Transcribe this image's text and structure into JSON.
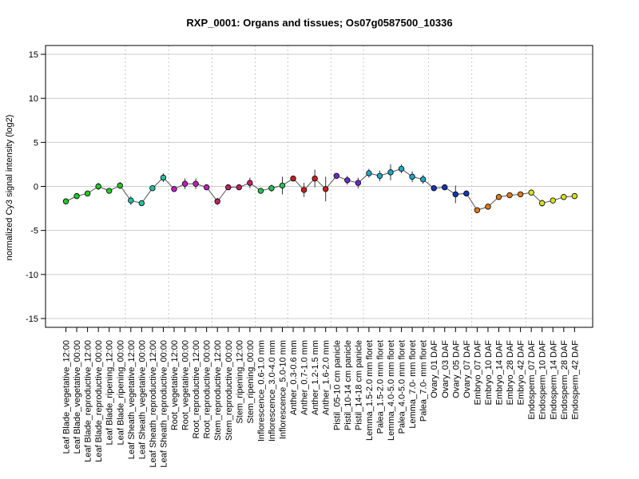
{
  "chart_data": {
    "type": "line",
    "title": "RXP_0001: Organs and tissues; Os07g0587500_10336",
    "xlabel": "",
    "ylabel": "normalized Cy3 signal intensity (log2)",
    "ylim": [
      -16,
      16
    ],
    "yticks": [
      -15,
      -10,
      -5,
      0,
      5,
      10,
      15
    ],
    "grid": true,
    "categories": [
      "Leaf Blade_vegetative_12:00",
      "Leaf Blade_vegetative_00:00",
      "Leaf Blade_reproductive_12:00",
      "Leaf Blade_reproductive_00:00",
      "Leaf Blade_ripening_12:00",
      "Leaf Blade_ripening_00:00",
      "Leaf Sheath_vegetative_12:00",
      "Leaf Sheath_vegetative_00:00",
      "Leaf Sheath_reproductive_12:00",
      "Leaf Sheath_reproductive_00:00",
      "Root_vegetative_12:00",
      "Root_vegetative_00:00",
      "Root_reproductive_12:00",
      "Root_reproductive_00:00",
      "Stem_reproductive_12:00",
      "Stem_reproductive_00:00",
      "Stem_ripening_12:00",
      "Stem_ripening_00:00",
      "Inflorescence_0.6-1.0 mm",
      "Inflorescence_3.0-4.0 mm",
      "Inflorescence_5.0-10 mm",
      "Anther_0.3-0.6 mm",
      "Anther_0.7-1.0 mm",
      "Anther_1.2-1.5 mm",
      "Anther_1.6-2.0 mm",
      "Pistil_05-10 cm panicle",
      "Pistil_10-14 cm panicle",
      "Pistil_14-18 cm panicle",
      "Lemma_1.5-2.0 mm floret",
      "Palea_1.5-2.0 mm floret",
      "Lemma_4.0-5.0 mm floret",
      "Palea_4.0-5.0 mm floret",
      "Lemma_7.0- mm floret",
      "Palea_7.0- mm floret",
      "Ovary_01 DAF",
      "Ovary_03 DAF",
      "Ovary_05 DAF",
      "Ovary_07 DAF",
      "Embryo_07 DAF",
      "Embryo_10 DAF",
      "Embryo_14 DAF",
      "Embryo_28 DAF",
      "Embryo_42 DAF",
      "Endosperm_07 DAF",
      "Endosperm_10 DAF",
      "Endosperm_14 DAF",
      "Endosperm_28 DAF",
      "Endosperm_42 DAF"
    ],
    "groups": [
      6,
      4,
      4,
      4,
      3,
      4,
      3,
      6,
      4,
      5,
      5
    ],
    "series": [
      {
        "values": [
          -1.7,
          -1.1,
          -0.8,
          0.0,
          -0.5,
          0.1,
          -1.6,
          -1.9,
          -0.2,
          1.0,
          -0.3,
          0.3,
          0.3,
          -0.1,
          -1.7,
          -0.1,
          -0.1,
          0.4,
          -0.5,
          -0.2,
          0.1,
          0.9,
          -0.4,
          0.9,
          -0.3,
          1.2,
          0.7,
          0.4,
          1.5,
          1.2,
          1.6,
          2.0,
          1.1,
          0.8,
          -0.2,
          -0.1,
          -0.9,
          -0.8,
          -2.7,
          -2.3,
          -1.2,
          -1.0,
          -0.9,
          -0.7,
          -1.9,
          -1.6,
          -1.2,
          -1.1
        ],
        "errors": [
          0.2,
          0.2,
          0.2,
          0.4,
          0.2,
          0.4,
          0.5,
          0.3,
          0.3,
          0.5,
          0.3,
          0.6,
          0.6,
          0.3,
          0.4,
          0.3,
          0.3,
          0.6,
          0.3,
          0.4,
          1.0,
          0.3,
          0.8,
          1.0,
          1.4,
          0.3,
          0.5,
          0.6,
          0.5,
          0.6,
          0.9,
          0.5,
          0.6,
          0.5,
          0.3,
          0.3,
          1.0,
          0.3,
          0.2,
          0.3,
          0.3,
          0.2,
          0.3,
          0.3,
          0.4,
          0.2,
          0.2,
          0.2
        ],
        "colors": [
          "#1fcc1f",
          "#1fcc1f",
          "#1fcc1f",
          "#1fcc1f",
          "#1fcc1f",
          "#1fcc1f",
          "#20c0a0",
          "#20c0a0",
          "#20c0a0",
          "#20c0a0",
          "#c020c0",
          "#c020c0",
          "#c020c0",
          "#c020c0",
          "#c0206a",
          "#c0206a",
          "#c0206a",
          "#c0206a",
          "#22c24f",
          "#22c24f",
          "#22c24f",
          "#c81e1e",
          "#c81e1e",
          "#c81e1e",
          "#c81e1e",
          "#6a2ad0",
          "#6a2ad0",
          "#6a2ad0",
          "#1ea8c8",
          "#1ea8c8",
          "#1ea8c8",
          "#1ea8c8",
          "#1ea8c8",
          "#1ea8c8",
          "#1436b4",
          "#1436b4",
          "#1436b4",
          "#1436b4",
          "#e07a14",
          "#e07a14",
          "#e07a14",
          "#e07a14",
          "#e07a14",
          "#d8e01e",
          "#d8e01e",
          "#d8e01e",
          "#d8e01e",
          "#d8e01e"
        ]
      }
    ]
  }
}
